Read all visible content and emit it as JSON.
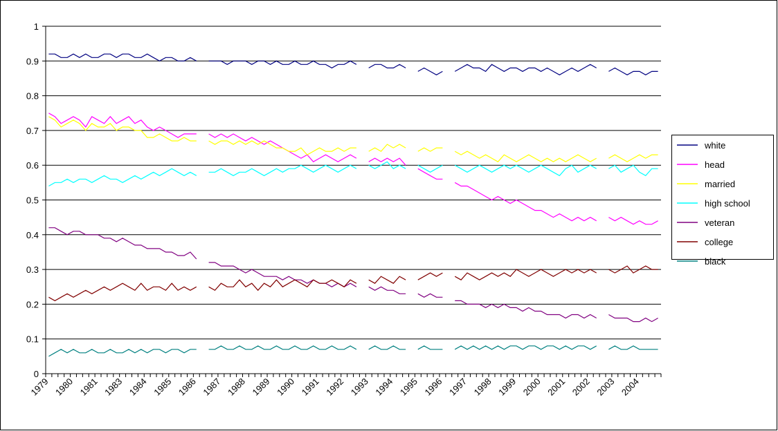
{
  "chart_data": {
    "type": "line",
    "categories": [
      "1979",
      null,
      null,
      null,
      "1980",
      null,
      null,
      null,
      "1981",
      null,
      null,
      null,
      "1983",
      null,
      null,
      null,
      "1984",
      null,
      null,
      null,
      "1985",
      null,
      null,
      null,
      "1986",
      null,
      null,
      null,
      "1987",
      null,
      null,
      null,
      "1988",
      null,
      null,
      null,
      "1989",
      null,
      null,
      null,
      "1990",
      null,
      null,
      null,
      "1991",
      null,
      null,
      null,
      "1992",
      null,
      null,
      null,
      "1993",
      null,
      null,
      null,
      "1994",
      null,
      null,
      null,
      "1995",
      null,
      null,
      null,
      "1996",
      null,
      null,
      null,
      "1997",
      null,
      null,
      null,
      "1998",
      null,
      null,
      null,
      "1999",
      null,
      null,
      null,
      "2000",
      null,
      null,
      null,
      "2001",
      null,
      null,
      null,
      "2002",
      null,
      null,
      null,
      "2003",
      null,
      null,
      null,
      "2004",
      null,
      null,
      null
    ],
    "series": [
      {
        "name": "white",
        "color": "#000080",
        "values": [
          0.92,
          0.92,
          0.91,
          0.91,
          0.92,
          0.91,
          0.92,
          0.91,
          0.91,
          0.92,
          0.92,
          0.91,
          0.92,
          0.92,
          0.91,
          0.91,
          0.92,
          0.91,
          0.9,
          0.91,
          0.91,
          0.9,
          0.9,
          0.91,
          0.9,
          null,
          0.9,
          0.9,
          0.9,
          0.89,
          0.9,
          0.9,
          0.9,
          0.89,
          0.9,
          0.9,
          0.89,
          0.9,
          0.89,
          0.89,
          0.9,
          0.89,
          0.89,
          0.9,
          0.89,
          0.89,
          0.88,
          0.89,
          0.89,
          0.9,
          0.89,
          null,
          0.88,
          0.89,
          0.89,
          0.88,
          0.88,
          0.89,
          0.88,
          null,
          0.87,
          0.88,
          0.87,
          0.86,
          0.87,
          null,
          0.87,
          0.88,
          0.89,
          0.88,
          0.88,
          0.87,
          0.89,
          0.88,
          0.87,
          0.88,
          0.88,
          0.87,
          0.88,
          0.88,
          0.87,
          0.88,
          0.87,
          0.86,
          0.87,
          0.88,
          0.87,
          0.88,
          0.89,
          0.88,
          null,
          0.87,
          0.88,
          0.87,
          0.86,
          0.87,
          0.87,
          0.86,
          0.87,
          0.87
        ]
      },
      {
        "name": "head",
        "color": "#ff00ff",
        "values": [
          0.75,
          0.74,
          0.72,
          0.73,
          0.74,
          0.73,
          0.71,
          0.74,
          0.73,
          0.72,
          0.74,
          0.72,
          0.73,
          0.74,
          0.72,
          0.73,
          0.71,
          0.7,
          0.71,
          0.7,
          0.69,
          0.68,
          0.69,
          0.69,
          0.69,
          null,
          0.69,
          0.68,
          0.69,
          0.68,
          0.69,
          0.68,
          0.67,
          0.68,
          0.67,
          0.66,
          0.67,
          0.66,
          0.65,
          0.64,
          0.63,
          0.62,
          0.63,
          0.61,
          0.62,
          0.63,
          0.62,
          0.61,
          0.62,
          0.63,
          0.62,
          null,
          0.61,
          0.62,
          0.61,
          0.62,
          0.61,
          0.62,
          0.6,
          null,
          0.59,
          0.58,
          0.57,
          0.56,
          0.56,
          null,
          0.55,
          0.54,
          0.54,
          0.53,
          0.52,
          0.51,
          0.5,
          0.51,
          0.5,
          0.49,
          0.5,
          0.49,
          0.48,
          0.47,
          0.47,
          0.46,
          0.45,
          0.46,
          0.45,
          0.44,
          0.45,
          0.44,
          0.45,
          0.44,
          null,
          0.45,
          0.44,
          0.45,
          0.44,
          0.43,
          0.44,
          0.43,
          0.43,
          0.44
        ]
      },
      {
        "name": "married",
        "color": "#ffff00",
        "values": [
          0.74,
          0.73,
          0.71,
          0.72,
          0.73,
          0.72,
          0.7,
          0.72,
          0.71,
          0.71,
          0.72,
          0.7,
          0.71,
          0.71,
          0.7,
          0.7,
          0.68,
          0.68,
          0.69,
          0.68,
          0.67,
          0.67,
          0.68,
          0.67,
          0.67,
          null,
          0.67,
          0.66,
          0.67,
          0.67,
          0.66,
          0.67,
          0.66,
          0.67,
          0.66,
          0.67,
          0.66,
          0.65,
          0.65,
          0.64,
          0.64,
          0.65,
          0.63,
          0.64,
          0.65,
          0.64,
          0.64,
          0.65,
          0.64,
          0.65,
          0.65,
          null,
          0.64,
          0.65,
          0.64,
          0.66,
          0.65,
          0.66,
          0.65,
          null,
          0.64,
          0.65,
          0.64,
          0.65,
          0.65,
          null,
          0.64,
          0.63,
          0.64,
          0.63,
          0.62,
          0.63,
          0.62,
          0.61,
          0.63,
          0.62,
          0.61,
          0.62,
          0.63,
          0.62,
          0.61,
          0.62,
          0.61,
          0.62,
          0.61,
          0.62,
          0.63,
          0.62,
          0.61,
          0.62,
          null,
          0.62,
          0.63,
          0.62,
          0.61,
          0.62,
          0.63,
          0.62,
          0.63,
          0.63
        ]
      },
      {
        "name": "high school",
        "color": "#00ffff",
        "values": [
          0.54,
          0.55,
          0.55,
          0.56,
          0.55,
          0.56,
          0.56,
          0.55,
          0.56,
          0.57,
          0.56,
          0.56,
          0.55,
          0.56,
          0.57,
          0.56,
          0.57,
          0.58,
          0.57,
          0.58,
          0.59,
          0.58,
          0.57,
          0.58,
          0.57,
          null,
          0.58,
          0.58,
          0.59,
          0.58,
          0.57,
          0.58,
          0.58,
          0.59,
          0.58,
          0.57,
          0.58,
          0.59,
          0.58,
          0.59,
          0.59,
          0.6,
          0.59,
          0.58,
          0.59,
          0.6,
          0.59,
          0.58,
          0.59,
          0.6,
          0.59,
          null,
          0.6,
          0.59,
          0.6,
          0.61,
          0.59,
          0.6,
          0.59,
          null,
          0.6,
          0.59,
          0.58,
          0.59,
          0.6,
          null,
          0.6,
          0.59,
          0.58,
          0.59,
          0.6,
          0.59,
          0.58,
          0.59,
          0.6,
          0.59,
          0.6,
          0.59,
          0.58,
          0.59,
          0.6,
          0.59,
          0.58,
          0.57,
          0.59,
          0.6,
          0.58,
          0.59,
          0.6,
          0.59,
          null,
          0.59,
          0.6,
          0.58,
          0.59,
          0.6,
          0.58,
          0.57,
          0.59,
          0.59
        ]
      },
      {
        "name": "veteran",
        "color": "#800080",
        "values": [
          0.42,
          0.42,
          0.41,
          0.4,
          0.41,
          0.41,
          0.4,
          0.4,
          0.4,
          0.39,
          0.39,
          0.38,
          0.39,
          0.38,
          0.37,
          0.37,
          0.36,
          0.36,
          0.36,
          0.35,
          0.35,
          0.34,
          0.34,
          0.35,
          0.33,
          null,
          0.32,
          0.32,
          0.31,
          0.31,
          0.31,
          0.3,
          0.29,
          0.3,
          0.29,
          0.28,
          0.28,
          0.28,
          0.27,
          0.28,
          0.27,
          0.27,
          0.26,
          0.27,
          0.26,
          0.26,
          0.25,
          0.26,
          0.25,
          0.26,
          0.25,
          null,
          0.25,
          0.24,
          0.25,
          0.24,
          0.24,
          0.23,
          0.23,
          null,
          0.23,
          0.22,
          0.23,
          0.22,
          0.22,
          null,
          0.21,
          0.21,
          0.2,
          0.2,
          0.2,
          0.19,
          0.2,
          0.19,
          0.2,
          0.19,
          0.19,
          0.18,
          0.19,
          0.18,
          0.18,
          0.17,
          0.17,
          0.17,
          0.16,
          0.17,
          0.17,
          0.16,
          0.17,
          0.16,
          null,
          0.17,
          0.16,
          0.16,
          0.16,
          0.15,
          0.15,
          0.16,
          0.15,
          0.16
        ]
      },
      {
        "name": "college",
        "color": "#800000",
        "values": [
          0.22,
          0.21,
          0.22,
          0.23,
          0.22,
          0.23,
          0.24,
          0.23,
          0.24,
          0.25,
          0.24,
          0.25,
          0.26,
          0.25,
          0.24,
          0.26,
          0.24,
          0.25,
          0.25,
          0.24,
          0.26,
          0.24,
          0.25,
          0.24,
          0.25,
          null,
          0.25,
          0.24,
          0.26,
          0.25,
          0.25,
          0.27,
          0.25,
          0.26,
          0.24,
          0.26,
          0.25,
          0.27,
          0.25,
          0.26,
          0.27,
          0.26,
          0.25,
          0.27,
          0.26,
          0.26,
          0.27,
          0.26,
          0.25,
          0.27,
          0.26,
          null,
          0.27,
          0.26,
          0.28,
          0.27,
          0.26,
          0.28,
          0.27,
          null,
          0.27,
          0.28,
          0.29,
          0.28,
          0.29,
          null,
          0.28,
          0.27,
          0.29,
          0.28,
          0.27,
          0.28,
          0.29,
          0.28,
          0.29,
          0.28,
          0.3,
          0.29,
          0.28,
          0.29,
          0.3,
          0.29,
          0.28,
          0.29,
          0.3,
          0.29,
          0.3,
          0.29,
          0.3,
          0.29,
          null,
          0.3,
          0.29,
          0.3,
          0.31,
          0.29,
          0.3,
          0.31,
          0.3,
          0.3
        ]
      },
      {
        "name": "black",
        "color": "#008080",
        "values": [
          0.05,
          0.06,
          0.07,
          0.06,
          0.07,
          0.06,
          0.06,
          0.07,
          0.06,
          0.06,
          0.07,
          0.06,
          0.06,
          0.07,
          0.06,
          0.07,
          0.06,
          0.07,
          0.07,
          0.06,
          0.07,
          0.07,
          0.06,
          0.07,
          0.07,
          null,
          0.07,
          0.07,
          0.08,
          0.07,
          0.07,
          0.08,
          0.07,
          0.07,
          0.08,
          0.07,
          0.07,
          0.08,
          0.07,
          0.07,
          0.08,
          0.07,
          0.07,
          0.08,
          0.07,
          0.07,
          0.08,
          0.07,
          0.07,
          0.08,
          0.07,
          null,
          0.07,
          0.08,
          0.07,
          0.07,
          0.08,
          0.07,
          0.07,
          null,
          0.07,
          0.08,
          0.07,
          0.07,
          0.07,
          null,
          0.07,
          0.08,
          0.07,
          0.08,
          0.07,
          0.08,
          0.07,
          0.08,
          0.07,
          0.08,
          0.08,
          0.07,
          0.08,
          0.08,
          0.07,
          0.08,
          0.08,
          0.07,
          0.08,
          0.07,
          0.08,
          0.08,
          0.07,
          0.08,
          null,
          0.07,
          0.08,
          0.07,
          0.07,
          0.08,
          0.07,
          0.07,
          0.07,
          0.07
        ]
      }
    ],
    "ylim": [
      0,
      1
    ],
    "yticks": [
      0,
      0.1,
      0.2,
      0.3,
      0.4,
      0.5,
      0.6,
      0.7,
      0.8,
      0.9,
      1
    ],
    "grid": true,
    "legend": "right"
  }
}
